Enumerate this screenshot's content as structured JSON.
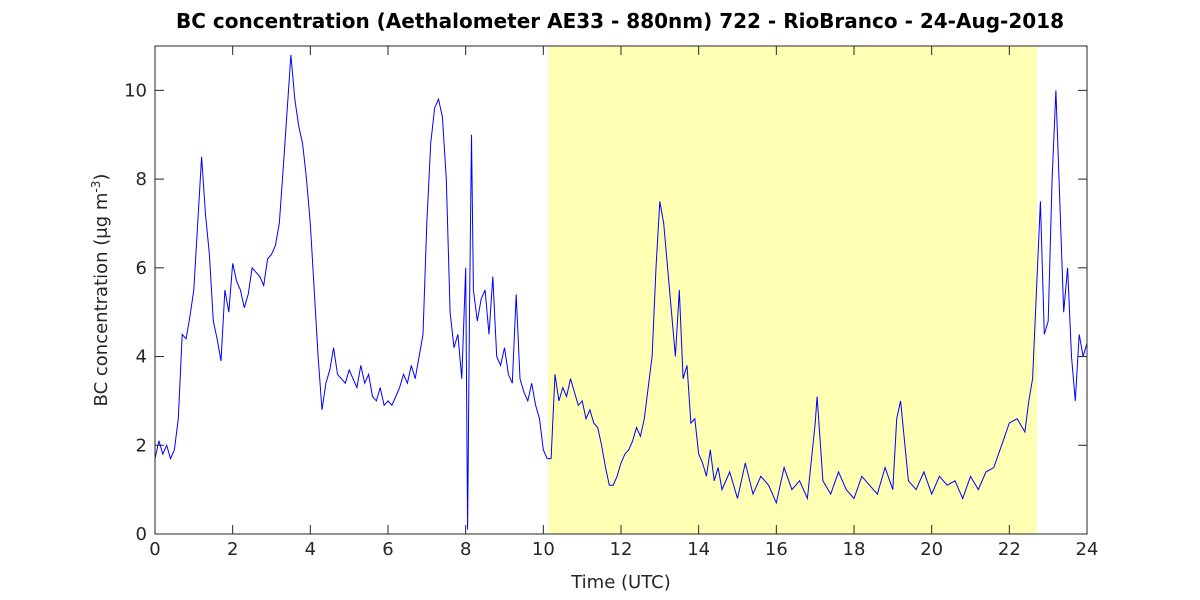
{
  "chart_data": {
    "type": "line",
    "title": "BC concentration (Aethalometer AE33 - 880nm) 722 - RioBranco - 24-Aug-2018",
    "xlabel": "Time (UTC)",
    "ylabel": [
      "BC concentration (μg m",
      "-3",
      ")"
    ],
    "xlim": [
      0,
      24
    ],
    "ylim": [
      0,
      11
    ],
    "xticks": [
      0,
      2,
      4,
      6,
      8,
      10,
      12,
      14,
      16,
      18,
      20,
      22,
      24
    ],
    "yticks": [
      0,
      2,
      4,
      6,
      8,
      10
    ],
    "shaded_span": [
      10.12,
      22.71
    ],
    "shade_color": "#ffffb3",
    "series": [
      {
        "color": "#0000ff",
        "x": [
          0,
          0.1,
          0.2,
          0.3,
          0.4,
          0.5,
          0.6,
          0.7,
          0.8,
          0.9,
          1.0,
          1.1,
          1.2,
          1.3,
          1.4,
          1.5,
          1.6,
          1.7,
          1.8,
          1.9,
          2.0,
          2.1,
          2.2,
          2.3,
          2.4,
          2.5,
          2.6,
          2.7,
          2.8,
          2.9,
          3.0,
          3.1,
          3.2,
          3.3,
          3.4,
          3.5,
          3.6,
          3.7,
          3.8,
          3.9,
          4.0,
          4.1,
          4.2,
          4.3,
          4.4,
          4.5,
          4.6,
          4.7,
          4.8,
          4.9,
          5.0,
          5.1,
          5.2,
          5.3,
          5.4,
          5.5,
          5.6,
          5.7,
          5.8,
          5.9,
          6.0,
          6.1,
          6.2,
          6.3,
          6.4,
          6.5,
          6.6,
          6.7,
          6.8,
          6.9,
          7.0,
          7.1,
          7.2,
          7.3,
          7.4,
          7.5,
          7.6,
          7.7,
          7.8,
          7.9,
          8.0,
          8.05,
          8.1,
          8.15,
          8.2,
          8.3,
          8.4,
          8.5,
          8.6,
          8.7,
          8.8,
          8.9,
          9.0,
          9.1,
          9.2,
          9.3,
          9.4,
          9.5,
          9.6,
          9.7,
          9.8,
          9.9,
          10.0,
          10.1,
          10.2,
          10.3,
          10.4,
          10.5,
          10.6,
          10.7,
          10.8,
          10.9,
          11.0,
          11.1,
          11.2,
          11.3,
          11.4,
          11.5,
          11.6,
          11.7,
          11.8,
          11.9,
          12.0,
          12.1,
          12.2,
          12.3,
          12.4,
          12.5,
          12.6,
          12.7,
          12.8,
          12.9,
          13.0,
          13.1,
          13.2,
          13.3,
          13.4,
          13.5,
          13.6,
          13.7,
          13.8,
          13.9,
          14.0,
          14.1,
          14.2,
          14.3,
          14.4,
          14.5,
          14.6,
          14.8,
          15.0,
          15.2,
          15.4,
          15.6,
          15.8,
          16.0,
          16.2,
          16.4,
          16.6,
          16.8,
          17.0,
          17.05,
          17.2,
          17.4,
          17.6,
          17.8,
          18.0,
          18.2,
          18.4,
          18.6,
          18.8,
          19.0,
          19.1,
          19.2,
          19.4,
          19.6,
          19.8,
          20.0,
          20.2,
          20.4,
          20.6,
          20.8,
          21.0,
          21.2,
          21.4,
          21.6,
          21.8,
          22.0,
          22.2,
          22.4,
          22.5,
          22.6,
          22.7,
          22.8,
          22.9,
          23.0,
          23.1,
          23.2,
          23.3,
          23.4,
          23.5,
          23.6,
          23.7,
          23.8,
          23.9,
          24.0
        ],
        "values": [
          1.7,
          2.1,
          1.8,
          2.0,
          1.7,
          1.9,
          2.6,
          4.5,
          4.4,
          4.9,
          5.5,
          7.0,
          8.5,
          7.2,
          6.3,
          4.8,
          4.4,
          3.9,
          5.5,
          5.0,
          6.1,
          5.7,
          5.5,
          5.1,
          5.4,
          6.0,
          5.9,
          5.8,
          5.6,
          6.2,
          6.3,
          6.5,
          7.0,
          8.2,
          9.5,
          10.8,
          9.8,
          9.2,
          8.8,
          8.0,
          7.0,
          5.5,
          4.0,
          2.8,
          3.4,
          3.7,
          4.2,
          3.6,
          3.5,
          3.4,
          3.7,
          3.5,
          3.3,
          3.8,
          3.4,
          3.6,
          3.1,
          3.0,
          3.3,
          2.9,
          3.0,
          2.9,
          3.1,
          3.3,
          3.6,
          3.4,
          3.8,
          3.5,
          4.0,
          4.5,
          7.0,
          8.8,
          9.6,
          9.8,
          9.4,
          8.0,
          5.0,
          4.2,
          4.5,
          3.5,
          6.0,
          0.1,
          5.0,
          9.0,
          5.5,
          4.8,
          5.3,
          5.5,
          4.5,
          5.8,
          4.0,
          3.8,
          4.2,
          3.6,
          3.4,
          5.4,
          3.5,
          3.2,
          3.0,
          3.4,
          2.9,
          2.6,
          1.9,
          1.7,
          1.7,
          3.6,
          3.0,
          3.3,
          3.1,
          3.5,
          3.2,
          2.9,
          3.0,
          2.6,
          2.8,
          2.5,
          2.4,
          2.0,
          1.5,
          1.1,
          1.1,
          1.3,
          1.6,
          1.8,
          1.9,
          2.1,
          2.4,
          2.2,
          2.6,
          3.3,
          4.0,
          6.0,
          7.5,
          7.0,
          6.0,
          5.0,
          4.0,
          5.5,
          3.5,
          3.8,
          2.5,
          2.6,
          1.8,
          1.6,
          1.3,
          1.9,
          1.2,
          1.5,
          1.0,
          1.4,
          0.8,
          1.6,
          0.9,
          1.3,
          1.1,
          0.7,
          1.5,
          1.0,
          1.2,
          0.8,
          2.5,
          3.1,
          1.2,
          0.9,
          1.4,
          1.0,
          0.8,
          1.3,
          1.1,
          0.9,
          1.5,
          1.0,
          2.6,
          3.0,
          1.2,
          1.0,
          1.4,
          0.9,
          1.3,
          1.1,
          1.2,
          0.8,
          1.3,
          1.0,
          1.4,
          1.5,
          2.0,
          2.5,
          2.6,
          2.3,
          3.0,
          3.5,
          5.5,
          7.5,
          4.5,
          4.8,
          8.0,
          10.0,
          7.5,
          5.0,
          6.0,
          4.0,
          3.0,
          4.5,
          4.0,
          4.3
        ]
      }
    ]
  }
}
